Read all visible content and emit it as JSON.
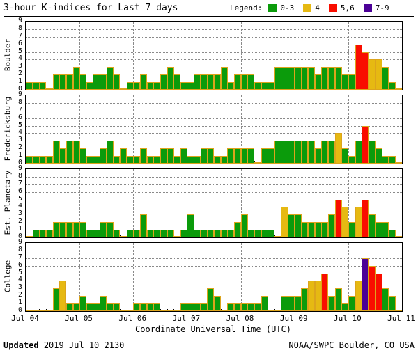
{
  "chart_data": {
    "type": "bar",
    "title": "3-hour K-indices for Last 7 days",
    "legend_label": "Legend:",
    "legend": [
      {
        "label": "0-3",
        "color": "#0b9b0b",
        "meaning": "k 0 to 3"
      },
      {
        "label": "4",
        "color": "#e6b912",
        "meaning": "k 4"
      },
      {
        "label": "5,6",
        "color": "#f90d00",
        "meaning": "k 5 or 6"
      },
      {
        "label": "7-9",
        "color": "#4b0096",
        "meaning": "k 7 to 9"
      }
    ],
    "bar_outline_color": "#dca41c",
    "xlabel": "Coordinate Universal Time (UTC)",
    "x_tick_labels": [
      "Jul 04",
      "Jul 05",
      "Jul 06",
      "Jul 07",
      "Jul 08",
      "Jul 09",
      "Jul 10",
      "Jul 11"
    ],
    "ylim": [
      0,
      9
    ],
    "y_tick_labels": [
      "0",
      "1",
      "2",
      "3",
      "4",
      "5",
      "6",
      "7",
      "8",
      "9"
    ],
    "h_gridlines_at": [
      4,
      5,
      6,
      7,
      8
    ],
    "bars_per_day": 8,
    "panels": [
      {
        "station": "Boulder",
        "values": [
          [
            1,
            1,
            1,
            0,
            2,
            2,
            2,
            3
          ],
          [
            2,
            1,
            2,
            2,
            3,
            2,
            0,
            1
          ],
          [
            1,
            2,
            1,
            1,
            2,
            3,
            2,
            1
          ],
          [
            1,
            2,
            2,
            2,
            2,
            3,
            1,
            2
          ],
          [
            2,
            2,
            1,
            1,
            1,
            3,
            3,
            3
          ],
          [
            3,
            3,
            3,
            2,
            3,
            3,
            3,
            2
          ],
          [
            2,
            6,
            5,
            4,
            4,
            3,
            1,
            0
          ]
        ]
      },
      {
        "station": "Fredericksburg",
        "values": [
          [
            1,
            1,
            1,
            1,
            3,
            2,
            3,
            3
          ],
          [
            2,
            1,
            1,
            2,
            3,
            1,
            2,
            1
          ],
          [
            1,
            2,
            1,
            1,
            2,
            2,
            1,
            2
          ],
          [
            1,
            1,
            2,
            2,
            1,
            1,
            2,
            2
          ],
          [
            2,
            2,
            0,
            2,
            2,
            3,
            3,
            3
          ],
          [
            3,
            3,
            3,
            2,
            3,
            3,
            4,
            2
          ],
          [
            1,
            3,
            5,
            3,
            2,
            1,
            1,
            0
          ]
        ]
      },
      {
        "station": "Est. Planetary",
        "values": [
          [
            0,
            1,
            1,
            1,
            2,
            2,
            2,
            2
          ],
          [
            2,
            1,
            1,
            2,
            2,
            1,
            0,
            1
          ],
          [
            1,
            3,
            1,
            1,
            1,
            1,
            0,
            1
          ],
          [
            3,
            1,
            1,
            1,
            1,
            1,
            1,
            2
          ],
          [
            3,
            1,
            1,
            1,
            1,
            0,
            4,
            3
          ],
          [
            3,
            2,
            2,
            2,
            2,
            3,
            5,
            4
          ],
          [
            2,
            4,
            5,
            3,
            2,
            2,
            1,
            0
          ]
        ]
      },
      {
        "station": "College",
        "values": [
          [
            0,
            0,
            0,
            0,
            3,
            4,
            1,
            1
          ],
          [
            2,
            1,
            1,
            2,
            1,
            1,
            0,
            0
          ],
          [
            1,
            1,
            1,
            1,
            0,
            0,
            0,
            1
          ],
          [
            1,
            1,
            1,
            3,
            2,
            0,
            1,
            1
          ],
          [
            1,
            1,
            1,
            2,
            0,
            0,
            2,
            2
          ],
          [
            2,
            3,
            4,
            4,
            5,
            2,
            3,
            1
          ],
          [
            2,
            4,
            7,
            6,
            5,
            3,
            2,
            0
          ]
        ]
      }
    ],
    "footer": {
      "updated_label": "Updated",
      "updated_value": "2019 Jul 10 2130",
      "credit": "NOAA/SWPC Boulder, CO USA"
    }
  }
}
